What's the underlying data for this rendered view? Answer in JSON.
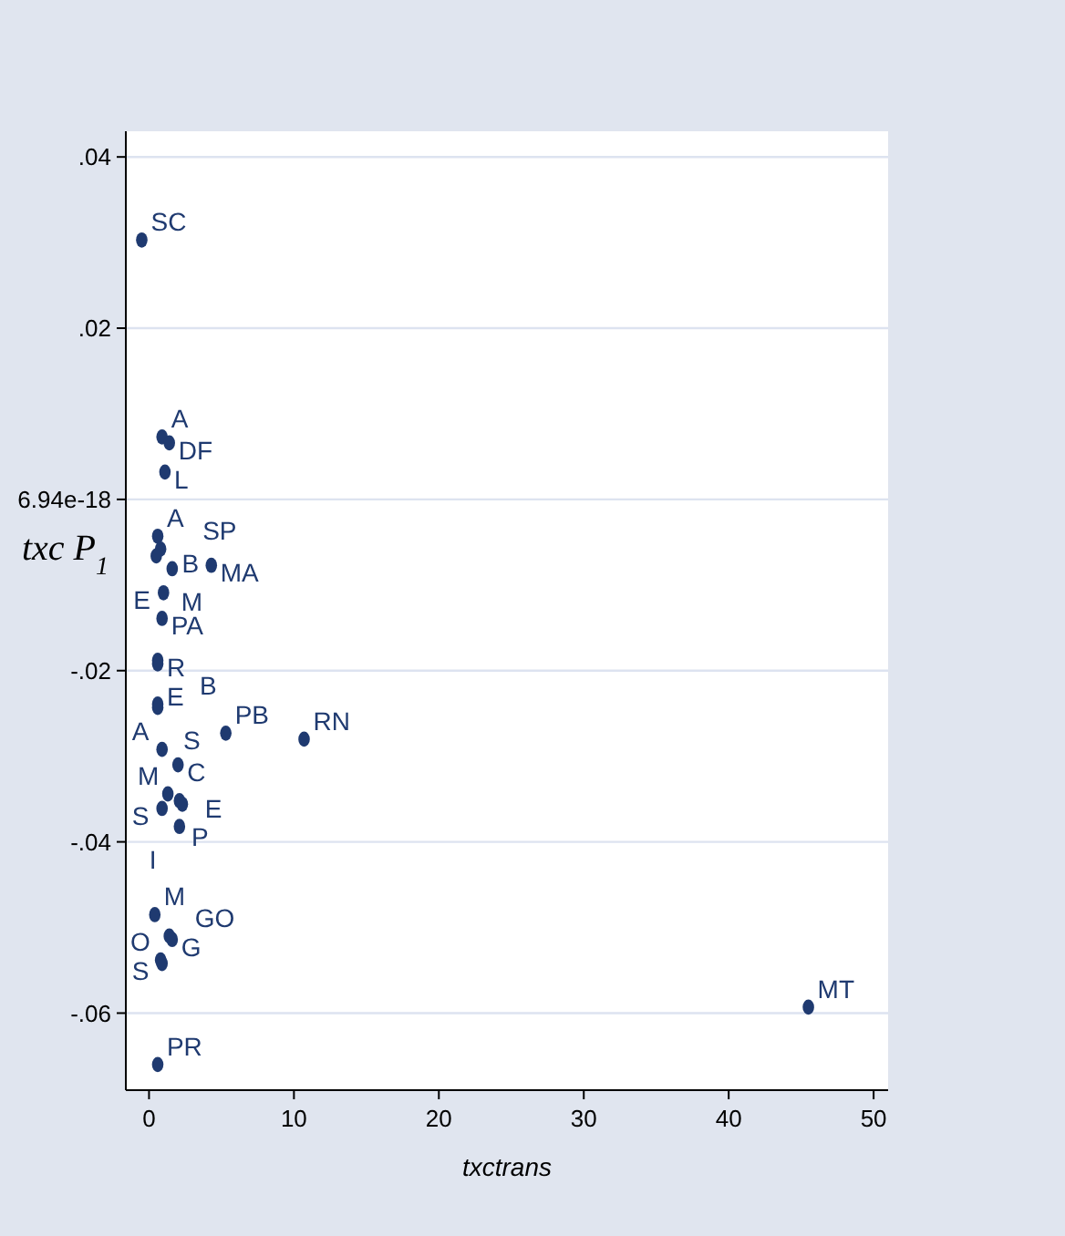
{
  "chart_data": {
    "type": "scatter",
    "xlabel": "txctrans",
    "ylabel": "txc P$_{1}$",
    "x": [
      -0.5,
      0.9,
      1.4,
      1.1,
      0.6,
      0.8,
      0.5,
      4.3,
      1.6,
      1.0,
      0.9,
      0.6,
      0.6,
      0.6,
      0.6,
      5.3,
      10.7,
      0.9,
      2.0,
      1.3,
      2.1,
      2.3,
      0.9,
      2.1,
      0.4,
      1.4,
      1.6,
      0.8,
      0.9,
      45.5,
      0.6
    ],
    "values": [
      0.0303,
      0.0073,
      0.0066,
      0.0032,
      -0.0043,
      -0.0058,
      -0.0066,
      -0.0077,
      -0.0081,
      -0.0109,
      -0.0139,
      -0.0188,
      -0.0192,
      -0.0239,
      -0.0243,
      -0.0273,
      -0.028,
      -0.0292,
      -0.031,
      -0.0344,
      -0.0352,
      -0.0356,
      -0.0361,
      -0.0382,
      -0.0485,
      -0.051,
      -0.0514,
      -0.0538,
      -0.0542,
      -0.0593,
      -0.066
    ],
    "value_labels": [
      "SC",
      "A",
      "DF",
      "L",
      "A",
      "SP",
      "B",
      "MA",
      "M",
      "E",
      "PA",
      "R",
      "E",
      "B",
      "S",
      "PB",
      "RN",
      "A",
      "C",
      "M",
      "E",
      "P",
      "S",
      "I",
      "M",
      "GO",
      "G",
      "O",
      "S",
      "MT",
      "PR"
    ],
    "color": "#1f3a70",
    "marker": "circle",
    "grid": "y",
    "xlim": [
      -1.6,
      51
    ],
    "xticks": [
      0,
      10,
      20,
      30,
      40,
      50
    ],
    "ylim": [
      -0.069,
      0.043
    ],
    "yticks": [
      {
        "value": 0.04,
        "label": ".04"
      },
      {
        "value": 0.02,
        "label": ".02"
      },
      {
        "value": 0,
        "label": "6.94e-18"
      },
      {
        "value": -0.02,
        "label": "-.02"
      },
      {
        "value": -0.04,
        "label": "-.04"
      },
      {
        "value": -0.06,
        "label": "-.06"
      }
    ]
  }
}
